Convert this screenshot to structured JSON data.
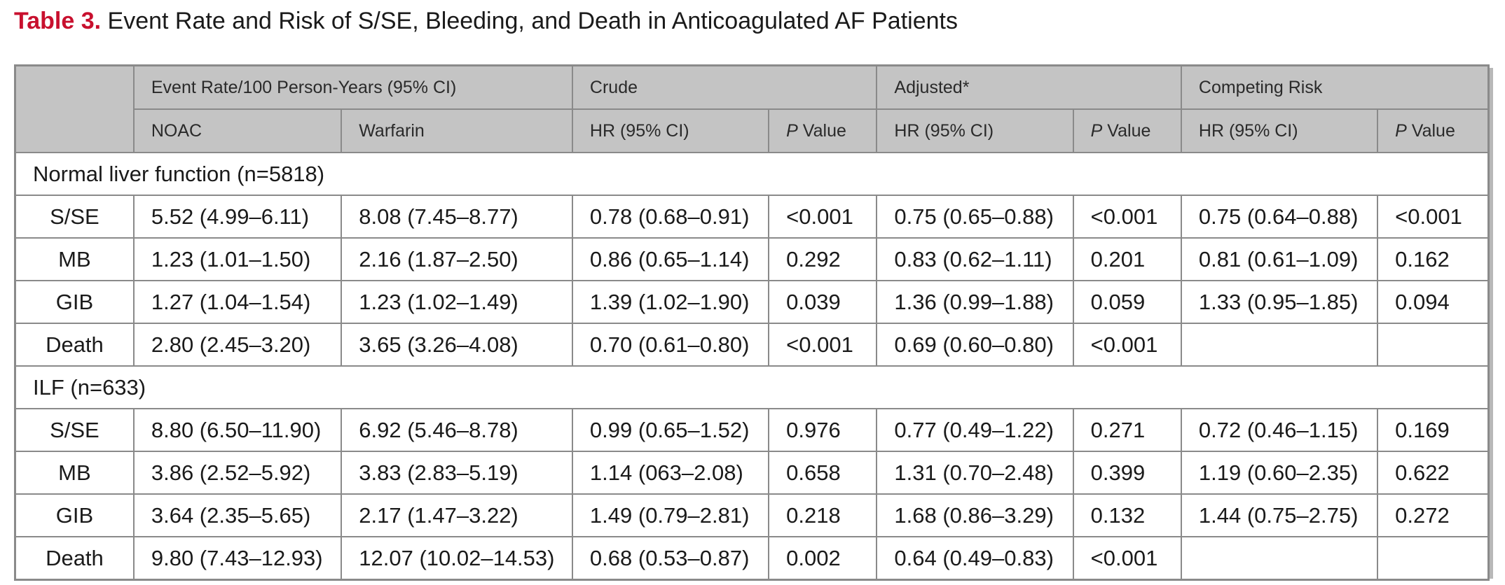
{
  "caption": {
    "label": "Table 3.",
    "title": "Event Rate and Risk of S/SE, Bleeding, and Death in Anticoagulated AF Patients"
  },
  "header": {
    "group_row": {
      "event_rate": "Event Rate/100 Person-Years (95% CI)",
      "crude": "Crude",
      "adjusted": "Adjusted*",
      "competing": "Competing Risk"
    },
    "sub_row": {
      "noac": "NOAC",
      "warfarin": "Warfarin",
      "hr": "HR (95% CI)",
      "p_italic": "P",
      "p_rest": " Value"
    }
  },
  "sections": [
    {
      "title": "Normal liver function (n=5818)",
      "rows": [
        [
          "S/SE",
          "5.52 (4.99–6.11)",
          "8.08 (7.45–8.77)",
          "0.78 (0.68–0.91)",
          "<0.001",
          "0.75 (0.65–0.88)",
          "<0.001",
          "0.75 (0.64–0.88)",
          "<0.001"
        ],
        [
          "MB",
          "1.23 (1.01–1.50)",
          "2.16 (1.87–2.50)",
          "0.86 (0.65–1.14)",
          "0.292",
          "0.83 (0.62–1.11)",
          "0.201",
          "0.81 (0.61–1.09)",
          "0.162"
        ],
        [
          "GIB",
          "1.27 (1.04–1.54)",
          "1.23 (1.02–1.49)",
          "1.39 (1.02–1.90)",
          "0.039",
          "1.36 (0.99–1.88)",
          "0.059",
          "1.33 (0.95–1.85)",
          "0.094"
        ],
        [
          "Death",
          "2.80 (2.45–3.20)",
          "3.65 (3.26–4.08)",
          "0.70 (0.61–0.80)",
          "<0.001",
          "0.69 (0.60–0.80)",
          "<0.001",
          "",
          ""
        ]
      ]
    },
    {
      "title": "ILF (n=633)",
      "rows": [
        [
          "S/SE",
          "8.80 (6.50–11.90)",
          "6.92 (5.46–8.78)",
          "0.99 (0.65–1.52)",
          "0.976",
          "0.77 (0.49–1.22)",
          "0.271",
          "0.72 (0.46–1.15)",
          "0.169"
        ],
        [
          "MB",
          "3.86 (2.52–5.92)",
          "3.83 (2.83–5.19)",
          "1.14 (063–2.08)",
          "0.658",
          "1.31 (0.70–2.48)",
          "0.399",
          "1.19 (0.60–2.35)",
          "0.622"
        ],
        [
          "GIB",
          "3.64 (2.35–5.65)",
          "2.17 (1.47–3.22)",
          "1.49 (0.79–2.81)",
          "0.218",
          "1.68 (0.86–3.29)",
          "0.132",
          "1.44 (0.75–2.75)",
          "0.272"
        ],
        [
          "Death",
          "9.80 (7.43–12.93)",
          "12.07 (10.02–14.53)",
          "0.68 (0.53–0.87)",
          "0.002",
          "0.64 (0.49–0.83)",
          "<0.001",
          "",
          ""
        ]
      ]
    }
  ],
  "colors": {
    "caption_label": "#c8102e",
    "header_bg": "#c4c4c4",
    "border": "#8a8a8a"
  }
}
